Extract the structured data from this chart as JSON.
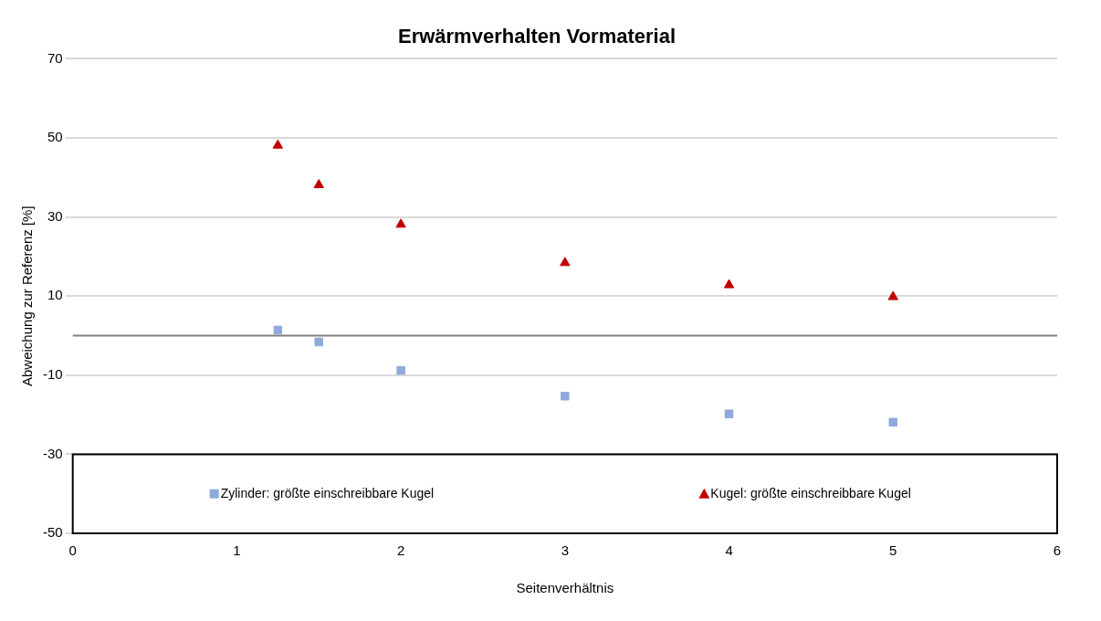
{
  "chart_data": {
    "type": "scatter",
    "title": "Erwärmverhalten Vormaterial",
    "xlabel": "Seitenverhältnis",
    "ylabel": "Abweichung zur Referenz [%]",
    "xlim": [
      0,
      6
    ],
    "xticks": [
      0,
      1,
      2,
      3,
      4,
      5,
      6
    ],
    "ylim": [
      -50,
      70
    ],
    "yticks": [
      -50,
      -30,
      -10,
      10,
      30,
      50,
      70
    ],
    "grid": "y",
    "legend": "bottom",
    "ref_lines": [
      {
        "axis": "y",
        "value": 0,
        "color": "#808080"
      }
    ],
    "series": [
      {
        "name": "Zylinder: größte einschreibbare Kugel",
        "color": "#8eaadb",
        "marker": "square",
        "x": [
          1.25,
          1.5,
          2,
          3,
          4,
          5
        ],
        "values": [
          1.4,
          -1.6,
          -8.8,
          -15.3,
          -19.8,
          -21.9
        ]
      },
      {
        "name": "Kugel: größte einschreibbare Kugel",
        "color": "#c00000",
        "marker": "triangle",
        "x": [
          1.25,
          1.5,
          2,
          3,
          4,
          5
        ],
        "values": [
          48.1,
          38.1,
          28.1,
          18.4,
          12.8,
          9.8
        ]
      }
    ]
  }
}
